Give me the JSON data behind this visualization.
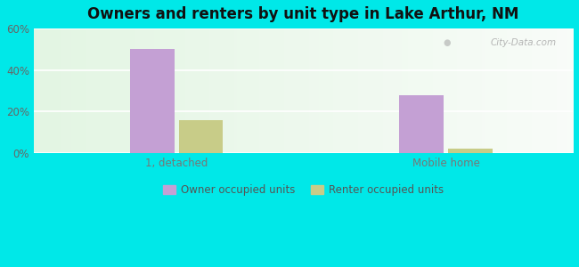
{
  "title": "Owners and renters by unit type in Lake Arthur, NM",
  "categories": [
    "1, detached",
    "Mobile home"
  ],
  "owner_values": [
    50,
    28
  ],
  "renter_values": [
    16,
    2
  ],
  "owner_color": "#c4a0d4",
  "renter_color": "#c8cc88",
  "owner_label": "Owner occupied units",
  "renter_label": "Renter occupied units",
  "ylim": [
    0,
    60
  ],
  "yticks": [
    0,
    20,
    40,
    60
  ],
  "ytick_labels": [
    "0%",
    "20%",
    "40%",
    "60%"
  ],
  "background_outer": "#00e8e8",
  "watermark": "City-Data.com",
  "bar_width": 0.28,
  "title_fontsize": 12
}
